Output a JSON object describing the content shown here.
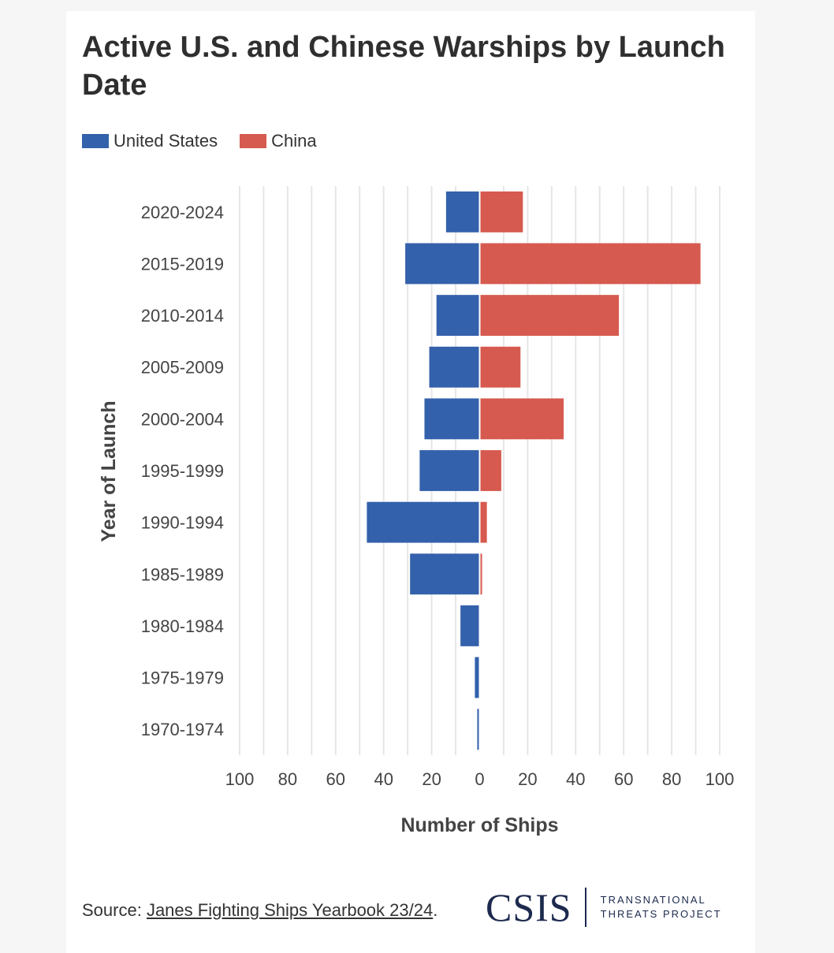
{
  "title": "Active U.S. and Chinese Warships by Launch Date",
  "colors": {
    "us": "#3461ab",
    "china": "#d65a4f",
    "grid": "#e6e6e6",
    "axis_center": "#cccccc"
  },
  "legend": {
    "us_label": "United States",
    "china_label": "China"
  },
  "chart_data": {
    "type": "bar",
    "orientation": "horizontal-butterfly",
    "categories": [
      "2020-2024",
      "2015-2019",
      "2010-2014",
      "2005-2009",
      "2000-2004",
      "1995-1999",
      "1990-1994",
      "1985-1989",
      "1980-1984",
      "1975-1979",
      "1970-1974"
    ],
    "series": [
      {
        "name": "United States",
        "side": "left",
        "values": [
          14,
          31,
          18,
          21,
          23,
          25,
          47,
          29,
          8,
          2,
          1
        ]
      },
      {
        "name": "China",
        "side": "right",
        "values": [
          18,
          92,
          58,
          17,
          35,
          9,
          3,
          1,
          0,
          0,
          0
        ]
      }
    ],
    "xlabel": "Number of Ships",
    "ylabel": "Year of Launch",
    "xlim": [
      -100,
      100
    ],
    "xticks": [
      -100,
      -80,
      -60,
      -40,
      -20,
      0,
      20,
      40,
      60,
      80,
      100
    ],
    "xtick_labels": [
      "100",
      "80",
      "60",
      "40",
      "20",
      "0",
      "20",
      "40",
      "60",
      "80",
      "100"
    ],
    "minor_gridlines": [
      -90,
      -70,
      -50,
      -30,
      -10,
      10,
      30,
      50,
      70,
      90
    ],
    "grid": true,
    "legend": "top-left"
  },
  "source": {
    "prefix": "Source: ",
    "link_text": "Janes Fighting Ships Yearbook 23/24",
    "suffix": "."
  },
  "logo": {
    "main": "CSIS",
    "line1": "TRANSNATIONAL",
    "line2": "THREATS PROJECT"
  }
}
